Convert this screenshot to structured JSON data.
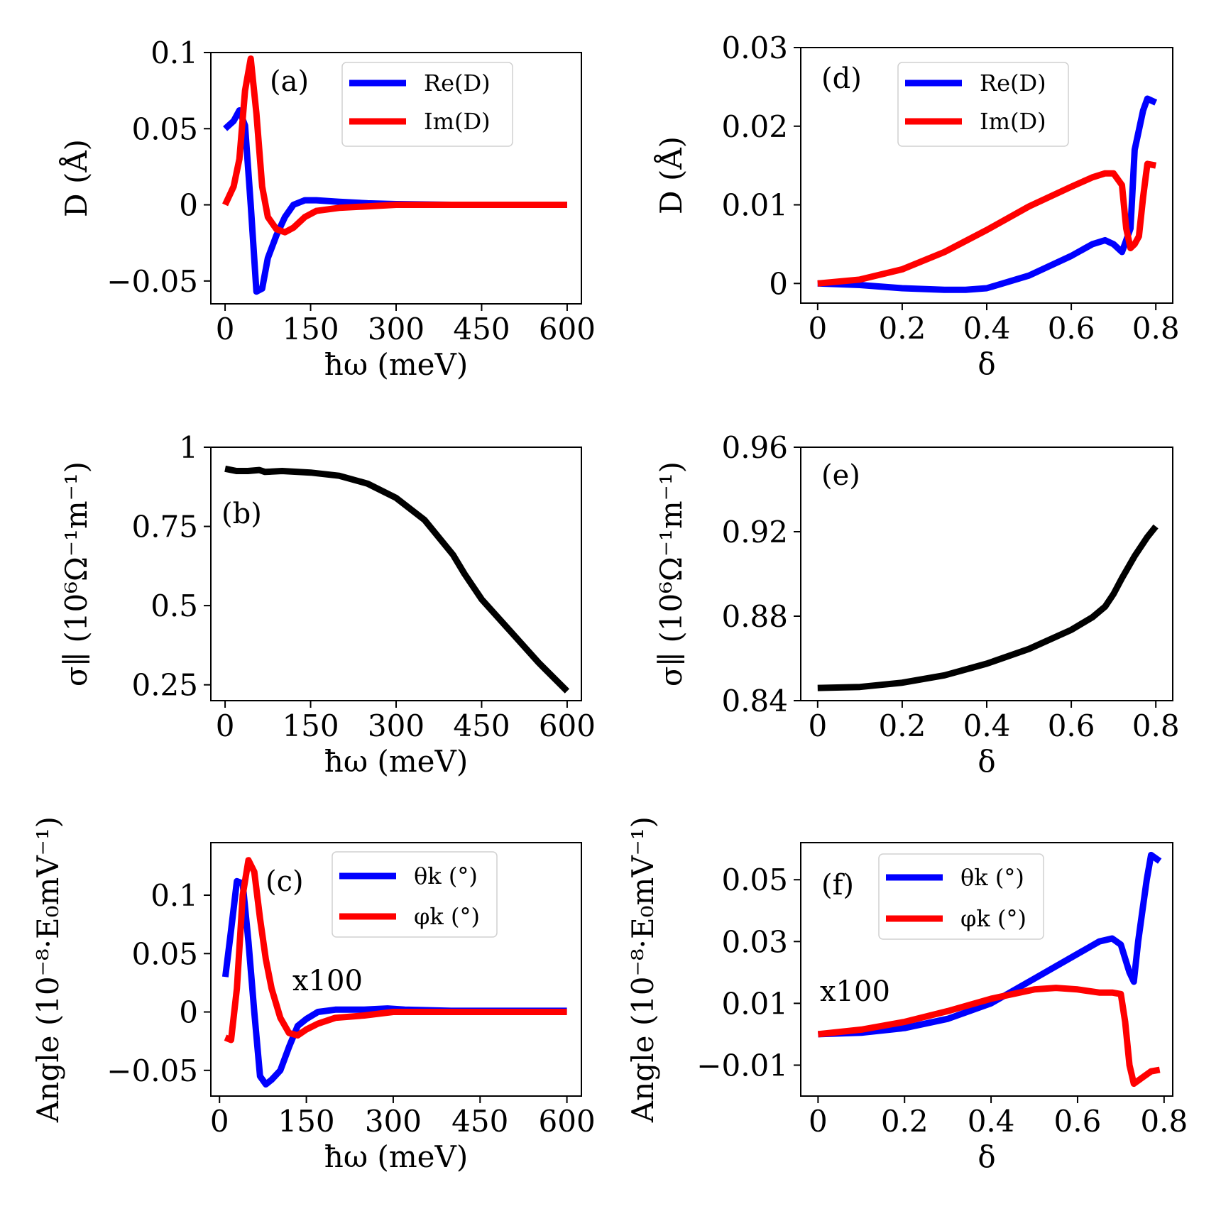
{
  "colors": {
    "blue": "#0000ff",
    "red": "#ff0000",
    "black": "#000000"
  },
  "chart_data": [
    {
      "id": "a",
      "type": "line",
      "tag": "(a)",
      "xlabel": "ħω (meV)",
      "ylabel": "D (Å)",
      "xlim": [
        -25,
        625
      ],
      "ylim": [
        -0.065,
        0.1
      ],
      "xticks": [
        0,
        150,
        300,
        450,
        600
      ],
      "xtick_labels": [
        "0",
        "150",
        "300",
        "450",
        "600"
      ],
      "yticks": [
        -0.05,
        0,
        0.05,
        0.1
      ],
      "ytick_labels": [
        "−0.05",
        "0",
        "0.05",
        "0.1"
      ],
      "legend": {
        "position": "top-right"
      },
      "series": [
        {
          "name": "Re(D)",
          "color": "blue",
          "x": [
            0,
            15,
            25,
            35,
            45,
            55,
            65,
            75,
            90,
            105,
            120,
            140,
            160,
            200,
            250,
            300,
            400,
            500,
            600
          ],
          "y": [
            0.05,
            0.055,
            0.062,
            0.052,
            0.0,
            -0.057,
            -0.055,
            -0.035,
            -0.02,
            -0.008,
            0.0,
            0.003,
            0.003,
            0.002,
            0.001,
            0.0005,
            0.0,
            0.0,
            0.0
          ]
        },
        {
          "name": "Im(D)",
          "color": "red",
          "x": [
            0,
            15,
            25,
            35,
            45,
            55,
            65,
            75,
            90,
            105,
            120,
            140,
            160,
            200,
            250,
            300,
            400,
            500,
            600
          ],
          "y": [
            0.0,
            0.012,
            0.03,
            0.075,
            0.096,
            0.06,
            0.012,
            -0.008,
            -0.016,
            -0.018,
            -0.015,
            -0.008,
            -0.004,
            -0.002,
            -0.001,
            0.0,
            0.0,
            0.0,
            0.0
          ]
        }
      ]
    },
    {
      "id": "b",
      "type": "line",
      "tag": "(b)",
      "xlabel": "ħω (meV)",
      "ylabel": "σ∥ (10⁶Ω⁻¹m⁻¹)",
      "xlim": [
        -25,
        625
      ],
      "ylim": [
        0.2,
        1.0
      ],
      "xticks": [
        0,
        150,
        300,
        450,
        600
      ],
      "xtick_labels": [
        "0",
        "150",
        "300",
        "450",
        "600"
      ],
      "yticks": [
        0.25,
        0.5,
        0.75,
        1.0
      ],
      "ytick_labels": [
        "0.25",
        "0.5",
        "0.75",
        "1"
      ],
      "series": [
        {
          "name": "σ∥",
          "color": "black",
          "x": [
            0,
            20,
            40,
            60,
            70,
            100,
            150,
            200,
            250,
            300,
            350,
            400,
            420,
            450,
            500,
            550,
            600
          ],
          "y": [
            0.932,
            0.925,
            0.925,
            0.928,
            0.922,
            0.925,
            0.92,
            0.91,
            0.885,
            0.84,
            0.77,
            0.66,
            0.6,
            0.52,
            0.42,
            0.32,
            0.23
          ]
        }
      ]
    },
    {
      "id": "c",
      "type": "line",
      "tag": "(c)",
      "annotation": "x100",
      "xlabel": "ħω (meV)",
      "ylabel": "Angle (10⁻⁸·E₀mV⁻¹)",
      "xlim": [
        -15,
        625
      ],
      "ylim": [
        -0.072,
        0.145
      ],
      "xticks": [
        0,
        150,
        300,
        450,
        600
      ],
      "xtick_labels": [
        "0",
        "150",
        "300",
        "450",
        "600"
      ],
      "yticks": [
        -0.05,
        0,
        0.05,
        0.1
      ],
      "ytick_labels": [
        "−0.05",
        "0",
        "0.05",
        "0.1"
      ],
      "legend": {
        "position": "top-right"
      },
      "series": [
        {
          "name": "θk (°)",
          "color": "blue",
          "x": [
            10,
            20,
            30,
            40,
            50,
            60,
            70,
            80,
            90,
            105,
            120,
            135,
            150,
            170,
            200,
            250,
            290,
            320,
            400,
            500,
            600
          ],
          "y": [
            0.03,
            0.07,
            0.112,
            0.11,
            0.06,
            0.0,
            -0.055,
            -0.062,
            -0.058,
            -0.05,
            -0.03,
            -0.012,
            -0.006,
            0.0,
            0.002,
            0.002,
            0.003,
            0.002,
            0.001,
            0.001,
            0.001
          ]
        },
        {
          "name": "φk (°)",
          "color": "red",
          "x": [
            10,
            20,
            30,
            40,
            50,
            60,
            70,
            80,
            90,
            105,
            120,
            135,
            150,
            170,
            200,
            250,
            300,
            400,
            500,
            600
          ],
          "y": [
            -0.022,
            -0.024,
            0.02,
            0.1,
            0.13,
            0.12,
            0.08,
            0.045,
            0.02,
            -0.005,
            -0.018,
            -0.02,
            -0.015,
            -0.01,
            -0.005,
            -0.003,
            0.0,
            0.0,
            0.0,
            0.0
          ]
        }
      ]
    },
    {
      "id": "d",
      "type": "line",
      "tag": "(d)",
      "xlabel": "δ",
      "ylabel": "D (Å)",
      "xlim": [
        -0.04,
        0.84
      ],
      "ylim": [
        -0.0025,
        0.03
      ],
      "xticks": [
        0,
        0.2,
        0.4,
        0.6,
        0.8
      ],
      "xtick_labels": [
        "0",
        "0.2",
        "0.4",
        "0.6",
        "0.8"
      ],
      "yticks": [
        0,
        0.01,
        0.02,
        0.03
      ],
      "ytick_labels": [
        "0",
        "0.01",
        "0.02",
        "0.03"
      ],
      "legend": {
        "position": "top-left"
      },
      "series": [
        {
          "name": "Re(D)",
          "color": "blue",
          "x": [
            0,
            0.1,
            0.2,
            0.3,
            0.35,
            0.4,
            0.5,
            0.6,
            0.65,
            0.68,
            0.7,
            0.72,
            0.74,
            0.75,
            0.77,
            0.78,
            0.8
          ],
          "y": [
            0.0,
            -0.0002,
            -0.0006,
            -0.0008,
            -0.0008,
            -0.0006,
            0.001,
            0.0035,
            0.005,
            0.0055,
            0.005,
            0.004,
            0.007,
            0.017,
            0.022,
            0.0235,
            0.023
          ]
        },
        {
          "name": "Im(D)",
          "color": "red",
          "x": [
            0,
            0.1,
            0.2,
            0.3,
            0.4,
            0.5,
            0.6,
            0.65,
            0.68,
            0.7,
            0.72,
            0.73,
            0.74,
            0.75,
            0.76,
            0.77,
            0.78,
            0.8
          ],
          "y": [
            0.0,
            0.0005,
            0.0018,
            0.004,
            0.0068,
            0.0098,
            0.0123,
            0.0135,
            0.014,
            0.014,
            0.0125,
            0.007,
            0.0045,
            0.005,
            0.006,
            0.011,
            0.0152,
            0.015
          ]
        }
      ]
    },
    {
      "id": "e",
      "type": "line",
      "tag": "(e)",
      "xlabel": "δ",
      "ylabel": "σ∥ (10⁶Ω⁻¹m⁻¹)",
      "xlim": [
        -0.04,
        0.84
      ],
      "ylim": [
        0.84,
        0.96
      ],
      "xticks": [
        0,
        0.2,
        0.4,
        0.6,
        0.8
      ],
      "xtick_labels": [
        "0",
        "0.2",
        "0.4",
        "0.6",
        "0.8"
      ],
      "yticks": [
        0.84,
        0.88,
        0.92,
        0.96
      ],
      "ytick_labels": [
        "0.84",
        "0.88",
        "0.92",
        "0.96"
      ],
      "series": [
        {
          "name": "σ∥",
          "color": "black",
          "x": [
            0,
            0.1,
            0.2,
            0.3,
            0.4,
            0.5,
            0.6,
            0.65,
            0.68,
            0.7,
            0.72,
            0.75,
            0.78,
            0.8
          ],
          "y": [
            0.846,
            0.8465,
            0.8485,
            0.852,
            0.8575,
            0.8645,
            0.8735,
            0.8795,
            0.8845,
            0.8905,
            0.898,
            0.9085,
            0.9175,
            0.9225
          ]
        }
      ]
    },
    {
      "id": "f",
      "type": "line",
      "tag": "(f)",
      "annotation": "x100",
      "xlabel": "δ",
      "ylabel": "Angle (10⁻⁸·E₀mV⁻¹)",
      "xlim": [
        -0.04,
        0.82
      ],
      "ylim": [
        -0.02,
        0.062
      ],
      "xticks": [
        0,
        0.2,
        0.4,
        0.6,
        0.8
      ],
      "xtick_labels": [
        "0",
        "0.2",
        "0.4",
        "0.6",
        "0.8"
      ],
      "yticks": [
        -0.01,
        0.01,
        0.03,
        0.05
      ],
      "ytick_labels": [
        "−0.01",
        "0.01",
        "0.03",
        "0.05"
      ],
      "legend": {
        "position": "top-left"
      },
      "series": [
        {
          "name": "θk (°)",
          "color": "blue",
          "x": [
            0,
            0.1,
            0.2,
            0.3,
            0.4,
            0.5,
            0.6,
            0.65,
            0.68,
            0.7,
            0.72,
            0.73,
            0.74,
            0.75,
            0.76,
            0.77,
            0.79
          ],
          "y": [
            0.0,
            0.0005,
            0.002,
            0.005,
            0.01,
            0.018,
            0.026,
            0.03,
            0.031,
            0.029,
            0.02,
            0.017,
            0.03,
            0.04,
            0.05,
            0.058,
            0.056
          ]
        },
        {
          "name": "φk (°)",
          "color": "red",
          "x": [
            0,
            0.1,
            0.2,
            0.3,
            0.4,
            0.5,
            0.55,
            0.6,
            0.65,
            0.68,
            0.7,
            0.71,
            0.72,
            0.73,
            0.75,
            0.77,
            0.79
          ],
          "y": [
            0.0,
            0.0015,
            0.004,
            0.0075,
            0.0115,
            0.0145,
            0.015,
            0.0145,
            0.0135,
            0.0135,
            0.013,
            0.004,
            -0.01,
            -0.016,
            -0.014,
            -0.012,
            -0.0115
          ]
        }
      ]
    }
  ]
}
